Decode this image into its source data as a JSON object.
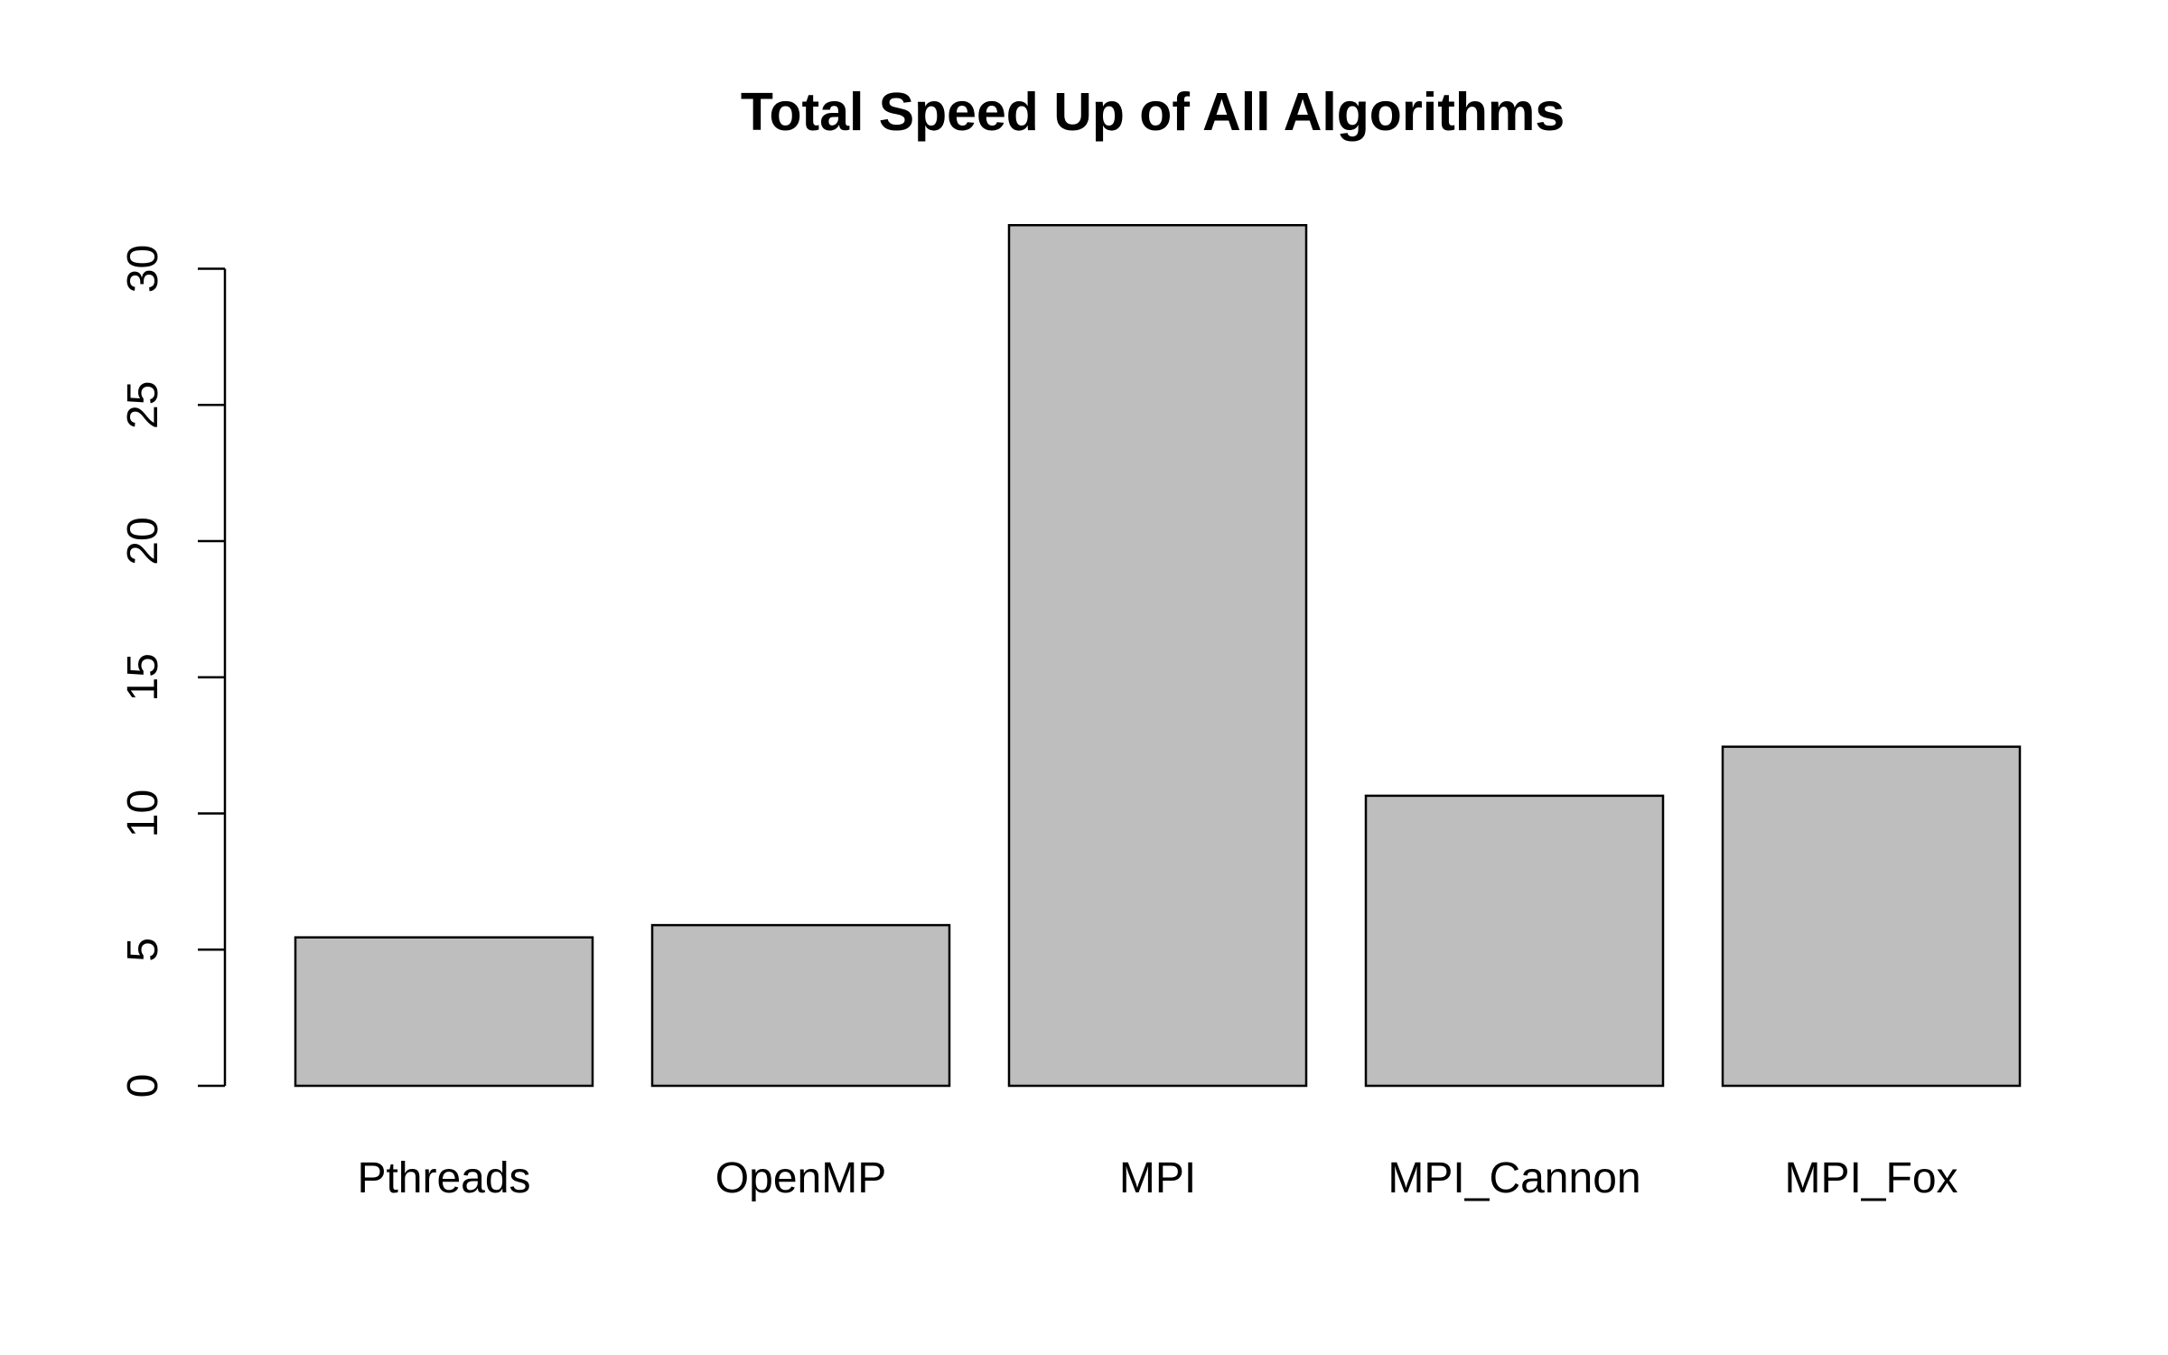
{
  "chart_data": {
    "type": "bar",
    "title": "Total Speed Up of All Algorithms",
    "xlabel": "",
    "ylabel": "",
    "categories": [
      "Pthreads",
      "OpenMP",
      "MPI",
      "MPI_Cannon",
      "MPI_Fox"
    ],
    "values": [
      5.45,
      5.9,
      31.6,
      10.65,
      12.45
    ],
    "yticks": [
      "0",
      "5",
      "10",
      "15",
      "20",
      "25",
      "30"
    ],
    "ylim": [
      0,
      30
    ],
    "grid": false,
    "legend": "none",
    "bar_color": "#bebebe",
    "border_color": "#000000"
  }
}
